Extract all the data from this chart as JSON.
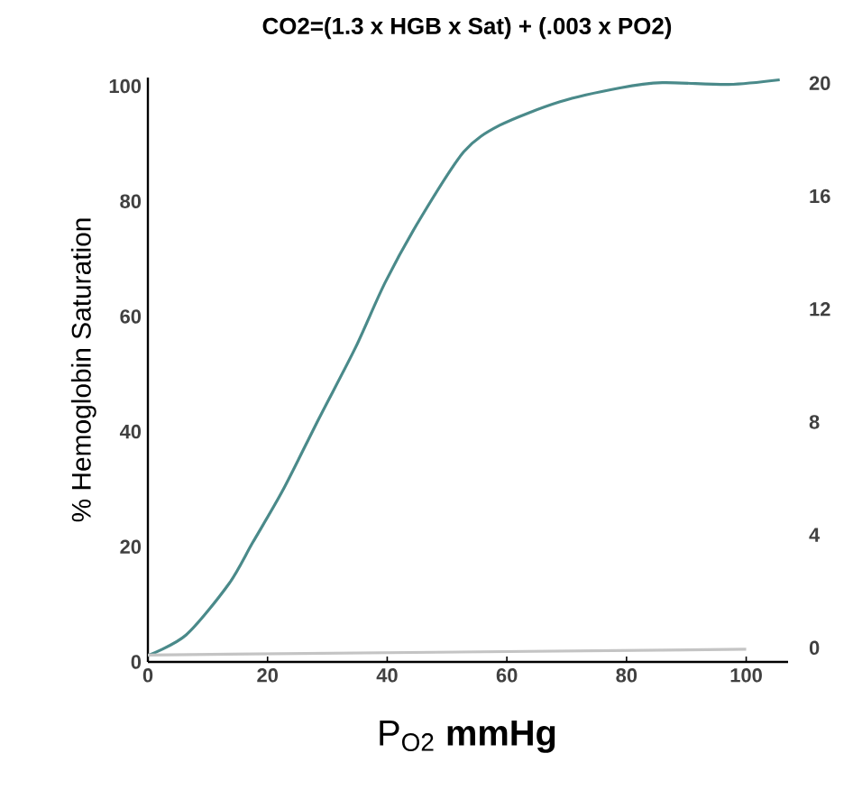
{
  "chart_data": {
    "type": "line",
    "title": "CO2=(1.3 x HGB x Sat) + (.003 x PO2)",
    "xlabel": "P$_{O2}$ **mmHg**",
    "ylabel": "% Hemoglobin Saturation",
    "xlim": [
      0,
      107
    ],
    "xticks": [
      0,
      20,
      40,
      60,
      80,
      100
    ],
    "ylim": [
      0,
      101.5
    ],
    "yticks": [
      0,
      20,
      40,
      60,
      80,
      100
    ],
    "y2lim": [
      -0.5,
      20.2
    ],
    "y2ticks": [
      0,
      4,
      8,
      12,
      16,
      20
    ],
    "grid": false,
    "marker": "none",
    "line_style": "solid",
    "series": [
      {
        "color": "#4a8a8a",
        "x": [
          0,
          6.4,
          13.5,
          17.5,
          22.6,
          28.6,
          34.7,
          39.7,
          45.7,
          52.8,
          58.8,
          68.9,
          78.9,
          86,
          97.1,
          105.6
        ],
        "values": [
          1.1,
          4.7,
          13.5,
          20.7,
          29.9,
          42.3,
          54.6,
          66,
          77.3,
          88.6,
          93.2,
          97.3,
          99.7,
          100.6,
          100.3,
          101.1
        ]
      },
      {
        "color": "#c4c4c4",
        "x": [
          0,
          100
        ],
        "values": [
          1.2,
          2.2
        ]
      }
    ]
  }
}
